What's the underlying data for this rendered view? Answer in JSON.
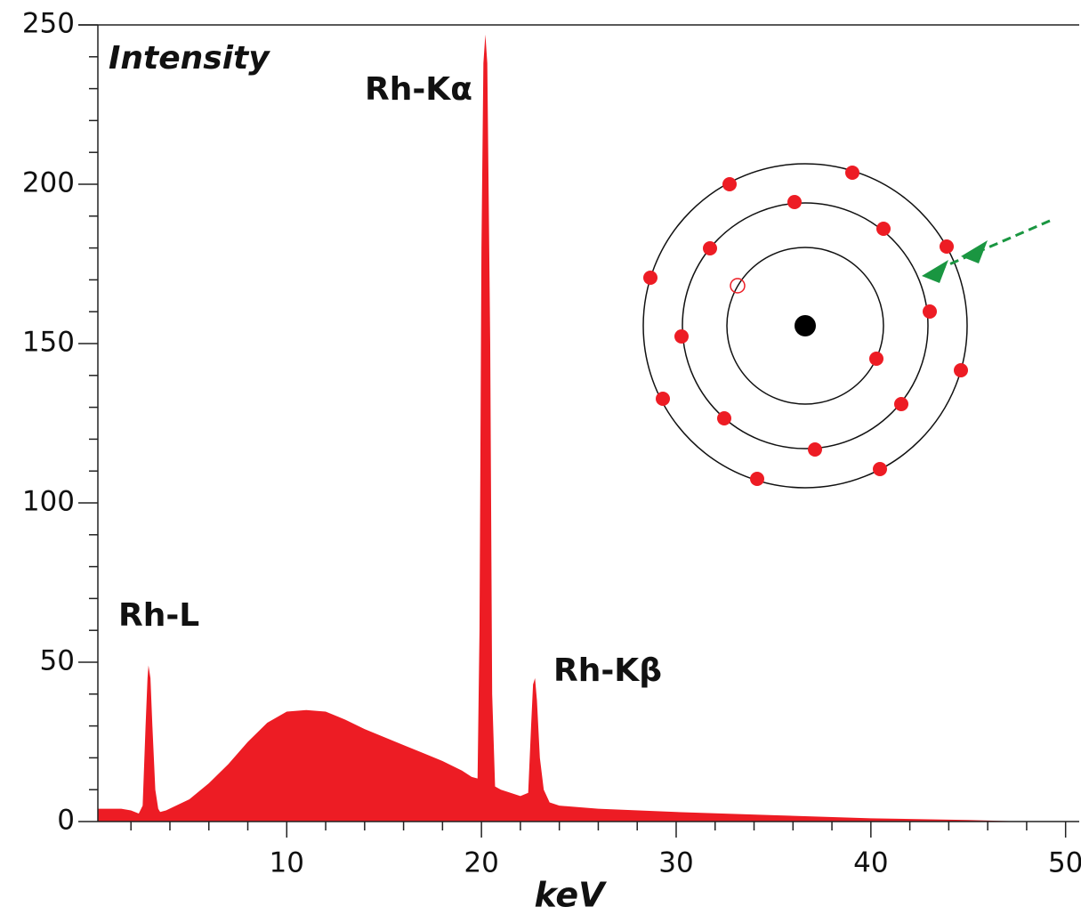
{
  "chart_data": {
    "type": "area",
    "xlabel": "keV",
    "ylabel": "Intensity",
    "annotations": [
      "Rh-L",
      "Rh-Kα",
      "Rh-Kβ"
    ],
    "color": "#ed1c24",
    "x": [
      0.3,
      1.5,
      2.0,
      2.4,
      2.6,
      2.75,
      2.85,
      2.9,
      3.0,
      3.1,
      3.25,
      3.4,
      3.5,
      3.8,
      5,
      6,
      7,
      8,
      9,
      10,
      11,
      12,
      13,
      14,
      15,
      16,
      17,
      18,
      19,
      19.5,
      19.8,
      19.9,
      20.0,
      20.1,
      20.2,
      20.3,
      20.45,
      20.55,
      20.7,
      21,
      22,
      22.4,
      22.55,
      22.65,
      22.75,
      22.85,
      23.0,
      23.2,
      23.5,
      24,
      26,
      30,
      35,
      40,
      45,
      48,
      50.7
    ],
    "values": [
      4,
      4,
      3.5,
      2.5,
      5,
      30,
      45,
      49,
      45,
      30,
      10,
      4,
      3,
      3.5,
      7,
      12,
      18,
      25,
      31,
      34.5,
      35,
      34.5,
      32,
      29,
      26.5,
      24,
      21.5,
      19,
      16,
      14,
      13.5,
      60,
      180,
      238,
      247,
      238,
      150,
      40,
      11,
      10,
      8,
      9,
      30,
      43,
      45,
      38,
      20,
      10,
      6,
      5,
      4,
      3,
      2,
      1,
      0.5,
      0,
      0
    ],
    "xlim": [
      0.3,
      50.7
    ],
    "ylim": [
      0,
      250
    ],
    "xticks": [
      10,
      20,
      30,
      40,
      50
    ],
    "xminor": [
      2,
      4,
      6,
      8,
      12,
      14,
      16,
      18,
      22,
      24,
      26,
      28,
      32,
      34,
      36,
      38,
      42,
      44,
      46,
      48
    ],
    "yticks": [
      0,
      50,
      100,
      150,
      200,
      250
    ],
    "yminor": [
      10,
      20,
      30,
      40,
      60,
      70,
      80,
      90,
      110,
      120,
      130,
      140,
      160,
      170,
      180,
      190,
      210,
      220,
      230,
      240
    ]
  }
}
